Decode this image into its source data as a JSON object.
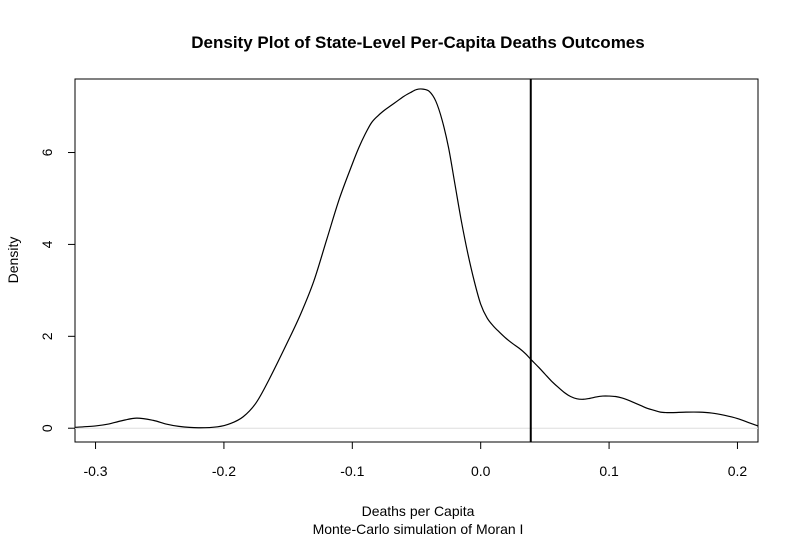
{
  "chart_data": {
    "type": "line",
    "title": "Density Plot of State-Level Per-Capita Deaths Outcomes",
    "xlabel": "Deaths per Capita",
    "subtitle": "Monte-Carlo simulation of Moran I",
    "ylabel": "Density",
    "xlim": [
      -0.316,
      0.216
    ],
    "ylim": [
      -0.3,
      7.6
    ],
    "x_ticks": [
      -0.3,
      -0.2,
      -0.1,
      0.0,
      0.1,
      0.2
    ],
    "x_tick_labels": [
      "-0.3",
      "-0.2",
      "-0.1",
      "0.0",
      "0.1",
      "0.2"
    ],
    "y_ticks": [
      0,
      2,
      4,
      6
    ],
    "y_tick_labels": [
      "0",
      "2",
      "4",
      "6"
    ],
    "grid": false,
    "vline_x": 0.039,
    "series": [
      {
        "x": [
          -0.316,
          -0.3,
          -0.29,
          -0.28,
          -0.268,
          -0.255,
          -0.245,
          -0.235,
          -0.22,
          -0.205,
          -0.195,
          -0.185,
          -0.175,
          -0.165,
          -0.15,
          -0.14,
          -0.13,
          -0.12,
          -0.11,
          -0.1,
          -0.095,
          -0.09,
          -0.085,
          -0.08,
          -0.075,
          -0.07,
          -0.065,
          -0.06,
          -0.055,
          -0.05,
          -0.045,
          -0.04,
          -0.035,
          -0.03,
          -0.025,
          -0.02,
          -0.015,
          -0.01,
          -0.005,
          0.0,
          0.005,
          0.01,
          0.015,
          0.02,
          0.025,
          0.03,
          0.035,
          0.039,
          0.045,
          0.05,
          0.055,
          0.06,
          0.065,
          0.07,
          0.075,
          0.08,
          0.085,
          0.09,
          0.095,
          0.1,
          0.105,
          0.11,
          0.115,
          0.12,
          0.125,
          0.13,
          0.135,
          0.14,
          0.145,
          0.15,
          0.16,
          0.17,
          0.18,
          0.19,
          0.2,
          0.21,
          0.216
        ],
        "y": [
          0.02,
          0.05,
          0.09,
          0.16,
          0.22,
          0.17,
          0.09,
          0.04,
          0.01,
          0.03,
          0.1,
          0.25,
          0.55,
          1.05,
          1.9,
          2.5,
          3.2,
          4.1,
          5.0,
          5.75,
          6.1,
          6.4,
          6.65,
          6.8,
          6.92,
          7.02,
          7.12,
          7.22,
          7.3,
          7.37,
          7.38,
          7.33,
          7.12,
          6.7,
          6.1,
          5.3,
          4.5,
          3.8,
          3.2,
          2.7,
          2.4,
          2.22,
          2.08,
          1.95,
          1.84,
          1.74,
          1.62,
          1.5,
          1.33,
          1.18,
          1.03,
          0.9,
          0.78,
          0.69,
          0.64,
          0.63,
          0.65,
          0.68,
          0.7,
          0.7,
          0.69,
          0.66,
          0.61,
          0.55,
          0.49,
          0.43,
          0.39,
          0.35,
          0.34,
          0.34,
          0.35,
          0.35,
          0.33,
          0.28,
          0.21,
          0.11,
          0.05
        ]
      }
    ]
  }
}
